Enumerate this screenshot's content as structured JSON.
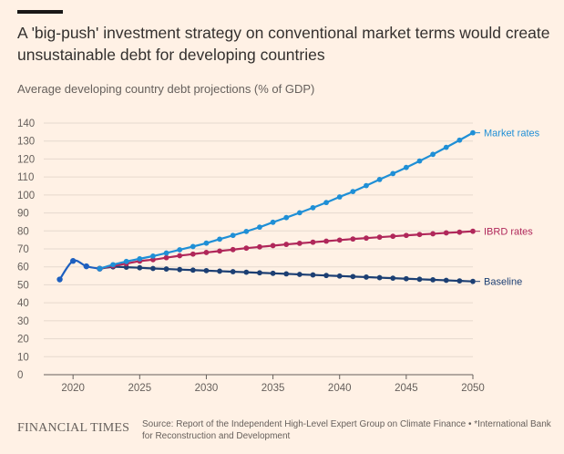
{
  "header": {
    "title": "A 'big-push' investment strategy on conventional market terms would create unsustainable debt for developing countries",
    "subtitle": "Average developing country debt projections (% of GDP)"
  },
  "footer": {
    "logo": "FINANCIAL TIMES",
    "source": "Source: Report of the Independent High-Level Expert Group on Climate Finance • *International Bank for Reconstruction and Development"
  },
  "chart_data": {
    "type": "line",
    "x": [
      2019,
      2020,
      2021,
      2022,
      2023,
      2024,
      2025,
      2026,
      2027,
      2028,
      2029,
      2030,
      2031,
      2032,
      2033,
      2034,
      2035,
      2036,
      2037,
      2038,
      2039,
      2040,
      2041,
      2042,
      2043,
      2044,
      2045,
      2046,
      2047,
      2048,
      2049,
      2050
    ],
    "xticks": [
      2020,
      2025,
      2030,
      2035,
      2040,
      2045,
      2050
    ],
    "yticks": [
      0,
      10,
      20,
      30,
      40,
      50,
      60,
      70,
      80,
      90,
      100,
      110,
      120,
      130,
      140
    ],
    "xlim": [
      2017.8,
      2050
    ],
    "ylim": [
      0,
      140
    ],
    "grid": true,
    "legend": "inline-right",
    "history": {
      "x": [
        2019,
        2020,
        2021,
        2022
      ],
      "values": [
        53,
        63.3,
        60.3,
        59
      ],
      "color": "#1d5fbf"
    },
    "series": [
      {
        "name": "Market rates",
        "color": "#1f8fd6",
        "values": [
          null,
          null,
          null,
          59,
          61.2,
          63,
          64.5,
          66,
          67.7,
          69.5,
          71.3,
          73.2,
          75.4,
          77.5,
          79.7,
          82.1,
          84.8,
          87.4,
          90.1,
          92.9,
          95.8,
          98.9,
          101.9,
          105.2,
          108.6,
          111.9,
          115.3,
          118.9,
          122.6,
          126.5,
          130.5,
          134.6
        ]
      },
      {
        "name": "IBRD rates",
        "color": "#b0275a",
        "values": [
          null,
          null,
          null,
          59,
          60.5,
          61.8,
          63.2,
          64,
          65.1,
          66.2,
          67.1,
          68,
          68.8,
          69.6,
          70.4,
          71.1,
          71.8,
          72.5,
          73.1,
          73.7,
          74.3,
          74.9,
          75.5,
          76,
          76.5,
          77,
          77.5,
          78,
          78.4,
          78.9,
          79.3,
          79.8
        ]
      },
      {
        "name": "Baseline",
        "color": "#1c3f73",
        "values": [
          null,
          null,
          null,
          59,
          60,
          59.8,
          59.5,
          59.1,
          58.8,
          58.5,
          58.2,
          57.9,
          57.6,
          57.3,
          57,
          56.7,
          56.4,
          56.1,
          55.8,
          55.5,
          55.2,
          54.9,
          54.6,
          54.3,
          54,
          53.7,
          53.4,
          53.1,
          52.8,
          52.5,
          52.2,
          51.9
        ]
      }
    ]
  }
}
